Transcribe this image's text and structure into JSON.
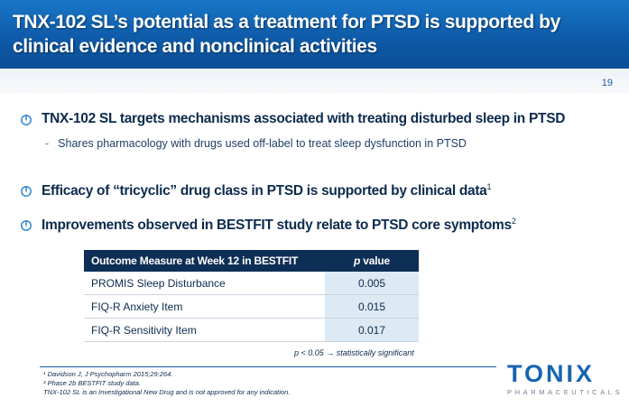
{
  "header": {
    "title": "TNX-102 SL’s potential as a treatment for PTSD is supported by clinical evidence and nonclinical activities",
    "page_number": "19"
  },
  "bullets": [
    {
      "text": "TNX-102 SL targets mechanisms associated with treating disturbed sleep in PTSD",
      "sup": ""
    },
    {
      "text": "Efficacy of “tricyclic” drug class in PTSD is supported by clinical data",
      "sup": "1"
    },
    {
      "text": "Improvements observed in BESTFIT study relate to PTSD core symptoms",
      "sup": "2"
    }
  ],
  "sub_bullet": {
    "dash": "-",
    "text": "Shares pharmacology with drugs used off-label to treat sleep dysfunction in PTSD"
  },
  "table": {
    "headers": [
      "Outcome Measure at Week 12 in BESTFIT",
      "p",
      " value"
    ],
    "rows": [
      [
        "PROMIS Sleep Disturbance",
        "0.005"
      ],
      [
        "FIQ-R Anxiety Item",
        "0.015"
      ],
      [
        "FIQ-R Sensitivity Item",
        "0.017"
      ]
    ]
  },
  "significance_note": "p < 0.05 → statistically significant",
  "footnotes": [
    "¹ Davidson J, J Psychopharm 2015;29:264.",
    "² Phase 2b BESTFIT study data.",
    "TNX-102 SL is an Investigational New Drug and is not approved for any indication."
  ],
  "logo": {
    "word": "TONIX",
    "subtitle": "PHARMACEUTICALS"
  },
  "colors": {
    "header_blue": "#1468b8",
    "navy": "#0d2f55",
    "table_value_bg": "#dde9f3",
    "bullet_icon": "#3e8ed0"
  }
}
